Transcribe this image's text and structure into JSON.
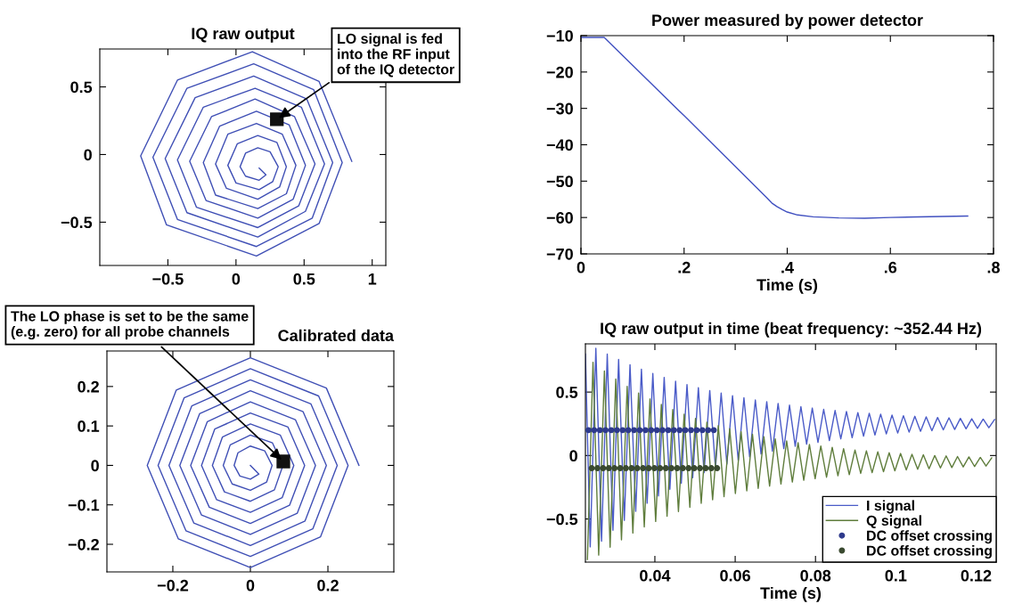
{
  "chart_data": [
    {
      "type": "line",
      "title": "IQ raw output",
      "xlim": [
        -1.0,
        1.1
      ],
      "ylim": [
        -0.82,
        0.78
      ],
      "xticks": [
        {
          "value": -0.5,
          "label": "−0.5"
        },
        0,
        0.5,
        1
      ],
      "yticks": [
        {
          "value": -0.5,
          "label": "−0.5"
        },
        0,
        0.5
      ],
      "annotations": [
        {
          "text": "LO signal is fed\ninto the RF input\nof the IQ detector",
          "x": 0.3,
          "y": 0.26
        }
      ],
      "series": [
        {
          "color": "#3f4fb5",
          "x": [
            0.85,
            0.61,
            0.12,
            -0.43,
            -0.7,
            -0.51,
            0.15,
            0.61,
            0.78,
            0.57,
            0.13,
            -0.36,
            -0.61,
            -0.43,
            0.15,
            0.56,
            0.71,
            0.52,
            0.13,
            -0.3,
            -0.52,
            -0.36,
            0.16,
            0.51,
            0.65,
            0.48,
            0.14,
            -0.24,
            -0.43,
            -0.29,
            0.16,
            0.46,
            0.58,
            0.43,
            0.14,
            -0.18,
            -0.34,
            -0.22,
            0.16,
            0.42,
            0.51,
            0.39,
            0.15,
            -0.12,
            -0.24,
            -0.15,
            0.16,
            0.37,
            0.44,
            0.34,
            0.15,
            -0.06,
            -0.15,
            -0.07,
            0.16,
            0.32,
            0.37,
            0.3,
            0.16,
            0.01,
            -0.06,
            0.0,
            0.17,
            0.27,
            0.31,
            0.25,
            0.16,
            0.07,
            0.03,
            0.07,
            0.17,
            0.22,
            0.17
          ],
          "values": [
            -0.05,
            0.54,
            0.76,
            0.55,
            -0.01,
            -0.52,
            -0.75,
            -0.51,
            -0.06,
            0.48,
            0.67,
            0.49,
            -0.02,
            -0.48,
            -0.68,
            -0.47,
            -0.06,
            0.41,
            0.58,
            0.42,
            -0.03,
            -0.43,
            -0.61,
            -0.42,
            -0.07,
            0.35,
            0.49,
            0.35,
            -0.04,
            -0.39,
            -0.54,
            -0.38,
            -0.07,
            0.28,
            0.41,
            0.28,
            -0.05,
            -0.34,
            -0.47,
            -0.33,
            -0.08,
            0.22,
            0.32,
            0.21,
            -0.06,
            -0.3,
            -0.4,
            -0.29,
            -0.08,
            0.15,
            0.23,
            0.15,
            -0.07,
            -0.25,
            -0.33,
            -0.24,
            -0.09,
            0.09,
            0.14,
            0.08,
            -0.08,
            -0.21,
            -0.26,
            -0.2,
            -0.09,
            0.02,
            0.05,
            0.01,
            -0.09,
            -0.16,
            -0.19,
            -0.15,
            -0.1
          ]
        },
        {
          "type": "scatter",
          "marker": "square",
          "color": "#111111",
          "x": [
            0.3
          ],
          "values": [
            0.26
          ]
        }
      ]
    },
    {
      "type": "line",
      "title": "Power measured by power detector",
      "xlabel": "Time (s)",
      "xlim": [
        0,
        0.8
      ],
      "ylim": [
        -70,
        -10
      ],
      "xticks": [
        0,
        {
          "value": 0.2,
          "label": ".2"
        },
        {
          "value": 0.4,
          "label": ".4"
        },
        {
          "value": 0.6,
          "label": ".6"
        },
        {
          "value": 0.8,
          "label": ".8"
        }
      ],
      "yticks": [
        {
          "value": -70,
          "label": "−70"
        },
        {
          "value": -60,
          "label": "−60"
        },
        {
          "value": -50,
          "label": "−50"
        },
        {
          "value": -40,
          "label": "−40"
        },
        {
          "value": -30,
          "label": "−30"
        },
        {
          "value": -20,
          "label": "−20"
        },
        {
          "value": -10,
          "label": "−10"
        }
      ],
      "series": [
        {
          "color": "#4050c0",
          "x": [
            0,
            0.045,
            0.2,
            0.36,
            0.37,
            0.38,
            0.39,
            0.4,
            0.42,
            0.45,
            0.5,
            0.55,
            0.6,
            0.7,
            0.75
          ],
          "values": [
            -10.5,
            -10.5,
            -32,
            -54.5,
            -56,
            -57,
            -57.8,
            -58.5,
            -59.3,
            -59.8,
            -60.1,
            -60.2,
            -60,
            -59.7,
            -59.6
          ]
        }
      ]
    },
    {
      "type": "line",
      "title": "Calibrated data",
      "xlim": [
        -0.37,
        0.37
      ],
      "ylim": [
        -0.27,
        0.29
      ],
      "xticks": [
        {
          "value": -0.2,
          "label": "−0.2"
        },
        0,
        0.2
      ],
      "yticks": [
        {
          "value": -0.2,
          "label": "−0.2"
        },
        {
          "value": -0.1,
          "label": "−0.1"
        },
        0,
        0.1,
        0.2
      ],
      "annotations": [
        {
          "text": "The LO phase is set to be the same\n(e.g. zero) for all probe channels",
          "x": 0.085,
          "y": 0.01
        }
      ],
      "series": [
        {
          "color": "#3f4fb5",
          "x": [
            0.28,
            0.196,
            0,
            -0.191,
            -0.266,
            -0.186,
            0,
            0.181,
            0.252,
            0.176,
            0,
            -0.171,
            -0.238,
            -0.166,
            0,
            0.161,
            0.224,
            0.156,
            0,
            -0.151,
            -0.21,
            -0.146,
            0,
            0.141,
            0.196,
            0.136,
            0,
            -0.131,
            -0.182,
            -0.126,
            0,
            0.121,
            0.168,
            0.116,
            0,
            -0.111,
            -0.154,
            -0.106,
            0,
            0.101,
            0.14,
            0.097,
            0,
            -0.092,
            -0.126,
            -0.087,
            0,
            0.082,
            0.112,
            0.077,
            0,
            -0.072,
            -0.098,
            -0.067,
            0,
            0.062,
            0.084,
            0.057,
            0,
            -0.052,
            -0.07,
            -0.047,
            0,
            0.042,
            0.056,
            0.037,
            0,
            -0.032,
            -0.042,
            -0.027,
            0,
            0.022,
            0
          ],
          "values": [
            0,
            0.196,
            0.273,
            0.191,
            0,
            -0.186,
            -0.259,
            -0.181,
            0,
            0.176,
            0.245,
            0.171,
            0,
            -0.166,
            -0.231,
            -0.161,
            0,
            0.156,
            0.217,
            0.151,
            0,
            -0.146,
            -0.203,
            -0.141,
            0,
            0.136,
            0.189,
            0.131,
            0,
            -0.126,
            -0.175,
            -0.121,
            0,
            0.116,
            0.161,
            0.111,
            0,
            -0.106,
            -0.147,
            -0.101,
            0,
            0.097,
            0.133,
            0.092,
            0,
            -0.087,
            -0.119,
            -0.082,
            0,
            0.077,
            0.105,
            0.072,
            0,
            -0.067,
            -0.091,
            -0.062,
            0,
            0.057,
            0.077,
            0.052,
            0,
            -0.047,
            -0.063,
            -0.042,
            0,
            0.037,
            0.049,
            0.032,
            0,
            -0.027,
            -0.035,
            -0.022,
            0
          ]
        },
        {
          "type": "scatter",
          "marker": "square",
          "color": "#111111",
          "x": [
            0.085
          ],
          "values": [
            0.01
          ]
        }
      ]
    },
    {
      "type": "line",
      "title": "IQ raw output in time (beat frequency: ~352.44 Hz)",
      "xlabel": "Time (s)",
      "xlim": [
        0.0227,
        0.125
      ],
      "ylim": [
        -0.84,
        0.88
      ],
      "xticks": [
        0.04,
        0.06,
        0.08,
        0.1,
        0.12
      ],
      "yticks": [
        {
          "value": -0.5,
          "label": "−0.5"
        },
        0,
        0.5
      ],
      "legend": "bottom right",
      "series": [
        {
          "name": "I signal",
          "color": "#4a5bc8",
          "x": [
            0.0227,
            0.0239,
            0.0253,
            0.02672,
            0.02814,
            0.02956,
            0.03097,
            0.03239,
            0.03381,
            0.03523,
            0.03665,
            0.03807,
            0.03949,
            0.0409,
            0.04232,
            0.04374,
            0.04516,
            0.04658,
            0.048,
            0.04942,
            0.05083,
            0.05225,
            0.05367,
            0.05509,
            0.05651,
            0.05793,
            0.05934,
            0.06076,
            0.06218,
            0.0636,
            0.06502,
            0.06644,
            0.06786,
            0.06927,
            0.07069,
            0.07211,
            0.07353,
            0.07495,
            0.07637,
            0.07779,
            0.0792,
            0.08062,
            0.08204,
            0.08346,
            0.08488,
            0.0863,
            0.08771,
            0.08913,
            0.09055,
            0.09197,
            0.09339,
            0.09481,
            0.09623,
            0.09764,
            0.09906,
            0.10048,
            0.1019,
            0.10332,
            0.10474,
            0.10616,
            0.10757,
            0.10899,
            0.11041,
            0.11183,
            0.11325,
            0.11467,
            0.11608,
            0.1175,
            0.11892,
            0.12034,
            0.12176,
            0.12318,
            0.1246
          ],
          "values": [
            0.8,
            -0.72,
            0.845,
            -0.675,
            0.799,
            -0.589,
            0.757,
            -0.511,
            0.716,
            -0.44,
            0.68,
            -0.376,
            0.647,
            -0.319,
            0.616,
            -0.266,
            0.586,
            -0.218,
            0.559,
            -0.175,
            0.535,
            -0.135,
            0.512,
            -0.1,
            0.492,
            -0.068,
            0.472,
            -0.038,
            0.455,
            -0.011,
            0.438,
            0.012,
            0.424,
            0.034,
            0.41,
            0.054,
            0.397,
            0.073,
            0.385,
            0.089,
            0.374,
            0.104,
            0.364,
            0.118,
            0.355,
            0.131,
            0.347,
            0.141,
            0.338,
            0.152,
            0.333,
            0.161,
            0.326,
            0.17,
            0.319,
            0.177,
            0.314,
            0.184,
            0.309,
            0.191,
            0.305,
            0.195,
            0.3,
            0.202,
            0.297,
            0.205,
            0.293,
            0.211,
            0.29,
            0.214,
            0.287,
            0.219,
            0.284
          ]
        },
        {
          "name": "Q signal",
          "color": "#5f7d3c",
          "x": [
            0.0232,
            0.02459,
            0.02601,
            0.02743,
            0.02885,
            0.03026,
            0.03168,
            0.0331,
            0.03452,
            0.03594,
            0.03736,
            0.03878,
            0.0402,
            0.04161,
            0.04303,
            0.04445,
            0.04587,
            0.04729,
            0.04871,
            0.05012,
            0.05154,
            0.05296,
            0.05438,
            0.0558,
            0.05722,
            0.05863,
            0.06005,
            0.06147,
            0.06289,
            0.06431,
            0.06573,
            0.06715,
            0.06857,
            0.06998,
            0.0714,
            0.07282,
            0.07424,
            0.07566,
            0.07708,
            0.07849,
            0.07991,
            0.08133,
            0.08275,
            0.08417,
            0.08559,
            0.087,
            0.08842,
            0.08984,
            0.09126,
            0.09268,
            0.0941,
            0.09552,
            0.09694,
            0.09835,
            0.09977,
            0.10119,
            0.10261,
            0.10403,
            0.10545,
            0.10686,
            0.10828,
            0.1097,
            0.11112,
            0.11254,
            0.11396,
            0.11537,
            0.11679,
            0.11821,
            0.11963,
            0.12105,
            0.12247,
            0.12389
          ],
          "values": [
            -0.82,
            0.735,
            -0.785,
            0.666,
            -0.722,
            0.603,
            -0.665,
            0.545,
            -0.611,
            0.493,
            -0.563,
            0.446,
            -0.52,
            0.403,
            -0.479,
            0.362,
            -0.442,
            0.326,
            -0.408,
            0.293,
            -0.377,
            0.263,
            -0.349,
            0.236,
            -0.324,
            0.211,
            -0.299,
            0.188,
            -0.278,
            0.167,
            -0.259,
            0.149,
            -0.241,
            0.131,
            -0.225,
            0.115,
            -0.209,
            0.101,
            -0.195,
            0.087,
            -0.183,
            0.075,
            -0.171,
            0.064,
            -0.16,
            0.054,
            -0.151,
            0.044,
            -0.141,
            0.037,
            -0.135,
            0.029,
            -0.127,
            0.022,
            -0.12,
            0.016,
            -0.114,
            0.01,
            -0.108,
            0.006,
            -0.104,
            0,
            -0.098,
            -0.003,
            -0.095,
            -0.008,
            -0.09,
            -0.011,
            -0.087,
            -0.015,
            -0.083,
            -0.018
          ]
        },
        {
          "type": "scatter",
          "name": "DC offset crossing",
          "marker": "circle",
          "color": "#2e3a8c",
          "x": [
            0.02346,
            0.02488,
            0.0263,
            0.02772,
            0.02914,
            0.03056,
            0.03197,
            0.03339,
            0.03481,
            0.03623,
            0.03765,
            0.03907,
            0.04049,
            0.04191,
            0.04333,
            0.04475,
            0.04616,
            0.04758,
            0.049,
            0.05042,
            0.05184,
            0.05326,
            0.05468
          ],
          "values": [
            0.2,
            0.2,
            0.2,
            0.2,
            0.2,
            0.2,
            0.2,
            0.2,
            0.2,
            0.2,
            0.2,
            0.2,
            0.2,
            0.2,
            0.2,
            0.2,
            0.2,
            0.2,
            0.2,
            0.2,
            0.2,
            0.2,
            0.2
          ]
        },
        {
          "type": "scatter",
          "name": "DC offset crossing",
          "marker": "circle",
          "color": "#3a4a30",
          "x": [
            0.02427,
            0.02569,
            0.02711,
            0.02853,
            0.02995,
            0.03137,
            0.03279,
            0.0342,
            0.03562,
            0.03704,
            0.03846,
            0.03988,
            0.0413,
            0.04272,
            0.04414,
            0.04556,
            0.04698,
            0.04839,
            0.04981,
            0.05123,
            0.05265,
            0.05407,
            0.05549
          ],
          "values": [
            -0.1,
            -0.1,
            -0.1,
            -0.1,
            -0.1,
            -0.1,
            -0.1,
            -0.1,
            -0.1,
            -0.1,
            -0.1,
            -0.1,
            -0.1,
            -0.1,
            -0.1,
            -0.1,
            -0.1,
            -0.1,
            -0.1,
            -0.1,
            -0.1,
            -0.1,
            -0.1
          ]
        }
      ]
    }
  ]
}
